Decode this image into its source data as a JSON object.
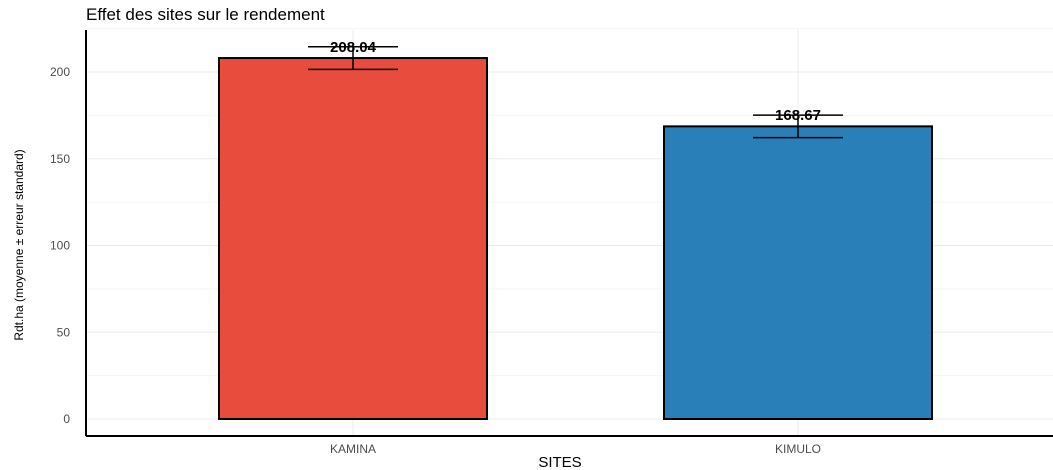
{
  "chart_data": {
    "type": "bar",
    "title": "Effet des sites sur le rendement",
    "xlabel": "SITES",
    "ylabel": "Rdt.ha (moyenne ± erreur standard)",
    "categories": [
      "KAMINA",
      "KIMULO"
    ],
    "values": [
      208.04,
      168.67
    ],
    "value_labels": [
      "208.04",
      "168.67"
    ],
    "errors": [
      6.5,
      6.5
    ],
    "colors": [
      "#E74C3C",
      "#2980B9"
    ],
    "ylim": [
      0,
      225
    ],
    "yticks": [
      0,
      50,
      100,
      150,
      200
    ],
    "grid": true,
    "legend": "none"
  }
}
